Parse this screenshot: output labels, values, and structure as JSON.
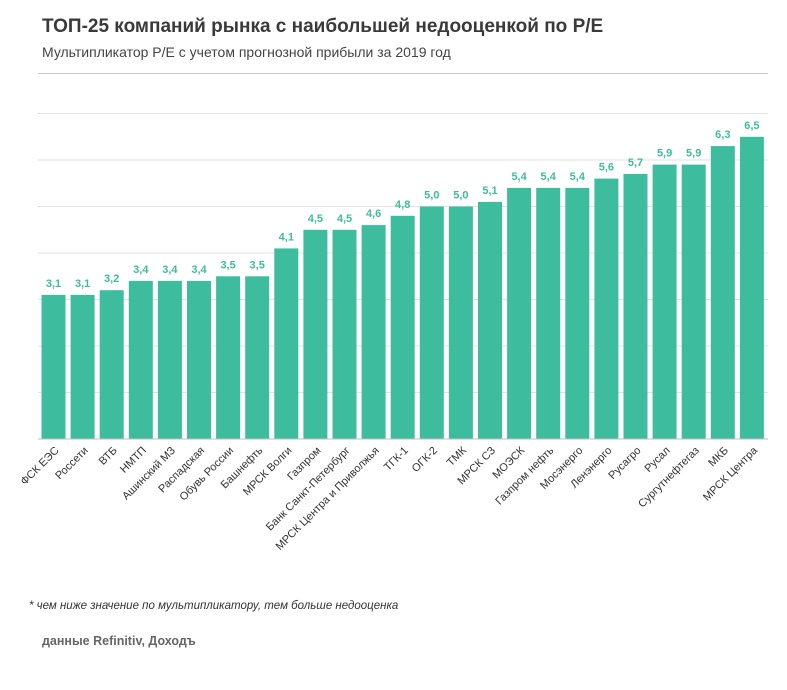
{
  "title": "ТОП-25 компаний рынка с наибольшей недооценкой по P/E",
  "subtitle": "Мультипликатор P/E с учетом прогнозной прибыли за 2019 год",
  "footnote": "* чем ниже значение по мультипликатору, тем больше недооценка",
  "source": "данные Refinitiv, Доходъ",
  "colors": {
    "bar": "#3dbd9e",
    "label": "#3dbd9e",
    "grid": "#e2e2e2",
    "axis": "#bfbfbf",
    "text": "#333333"
  },
  "chart_data": {
    "type": "bar",
    "title": "ТОП-25 компаний рынка с наибольшей недооценкой по P/E",
    "subtitle": "Мультипликатор P/E с учетом прогнозной прибыли за 2019 год",
    "categories": [
      "ФСК ЕЭС",
      "Россети",
      "ВТБ",
      "НМТП",
      "Ашинский МЗ",
      "Распадская",
      "Обувь России",
      "Башнефть",
      "МРСК Волги",
      "Газпром",
      "Банк Санкт-Петербург",
      "МРСК Центра и Приволжья",
      "ТГК-1",
      "ОГК-2",
      "ТМК",
      "МРСК СЗ",
      "МОЭСК",
      "Газпром нефть",
      "Мосэнерго",
      "Ленэнерго",
      "Русагро",
      "Русал",
      "Сургутнефтегаз",
      "МКБ",
      "МРСК Центра"
    ],
    "values": [
      3.1,
      3.1,
      3.2,
      3.4,
      3.4,
      3.4,
      3.5,
      3.5,
      4.1,
      4.5,
      4.5,
      4.6,
      4.8,
      5.0,
      5.0,
      5.1,
      5.4,
      5.4,
      5.4,
      5.6,
      5.7,
      5.9,
      5.9,
      6.3,
      6.5
    ],
    "value_labels": [
      "3,1",
      "3,1",
      "3,2",
      "3,4",
      "3,4",
      "3,4",
      "3,5",
      "3,5",
      "4,1",
      "4,5",
      "4,5",
      "4,6",
      "4,8",
      "5,0",
      "5,0",
      "5,1",
      "5,4",
      "5,4",
      "5,4",
      "5,6",
      "5,7",
      "5,9",
      "5,9",
      "6,3",
      "6,5"
    ],
    "ylim": [
      0,
      7
    ],
    "grid": true,
    "legend": "none"
  }
}
